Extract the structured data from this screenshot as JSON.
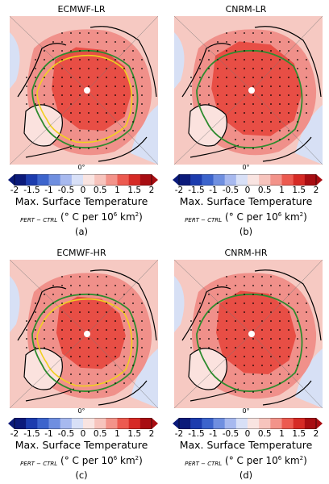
{
  "panels": [
    {
      "title": "ECMWF-LR",
      "label": "(a)",
      "pole_label": "0°",
      "has_yellow_contour": true,
      "deep_fraction": 0.75
    },
    {
      "title": "CNRM-LR",
      "label": "(b)",
      "pole_label": "0°",
      "has_yellow_contour": false,
      "deep_fraction": 0.85
    },
    {
      "title": "ECMWF-HR",
      "label": "(c)",
      "pole_label": "0°",
      "has_yellow_contour": true,
      "deep_fraction": 0.65
    },
    {
      "title": "CNRM-HR",
      "label": "(d)",
      "pole_label": "0°",
      "has_yellow_contour": false,
      "deep_fraction": 0.75
    }
  ],
  "colorbar": {
    "tick_labels": [
      "-2",
      "-1.5",
      "-1",
      "-0.5",
      "0",
      "0.5",
      "1",
      "1.5",
      "2"
    ],
    "variable": "Max. Surface Temperature",
    "subscript": "PERT − CTRL",
    "units_prefix": "(",
    "units_body": "° C per 10",
    "units_exp": "6",
    "units_suffix": " km",
    "units_exp2": "2",
    "units_close": ")",
    "colors": [
      "#0b1a7a",
      "#1c3cae",
      "#3c64cc",
      "#6f8fe0",
      "#a7b9ef",
      "#d8e0f7",
      "#f9e4e1",
      "#f7c4bd",
      "#f3938a",
      "#ec5a50",
      "#d62a25",
      "#a80d12"
    ]
  },
  "colors": {
    "map_warm_light": "#f6c9c2",
    "map_warm_mid": "#f0908a",
    "map_warm_deep": "#e84e45",
    "map_cool": "#d7e0f5",
    "land_outline": "#000000",
    "contour_green": "#2e8b2e",
    "contour_yellow": "#f0d020",
    "pole_marker": "#ffffff"
  }
}
